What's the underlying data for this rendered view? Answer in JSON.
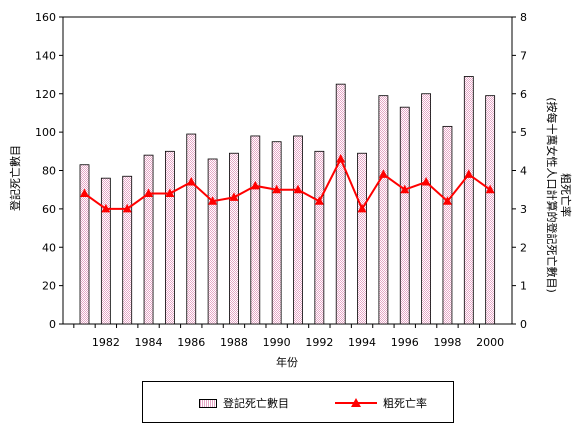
{
  "chart_data": {
    "type": "bar+line",
    "x_tick_labels": [
      "1982",
      "1984",
      "1986",
      "1988",
      "1990",
      "1992",
      "1994",
      "1996",
      "1998",
      "2000"
    ],
    "years": [
      1981,
      1982,
      1983,
      1984,
      1985,
      1986,
      1987,
      1988,
      1989,
      1990,
      1991,
      1992,
      1993,
      1994,
      1995,
      1996,
      1997,
      1998,
      1999,
      2000
    ],
    "series": [
      {
        "name": "登記死亡數目",
        "type": "bar",
        "axis": "left",
        "color": "#e6a6c6",
        "values": [
          83,
          76,
          77,
          88,
          90,
          99,
          86,
          89,
          98,
          95,
          98,
          90,
          125,
          89,
          119,
          113,
          120,
          103,
          129,
          119
        ]
      },
      {
        "name": "粗死亡率",
        "type": "line",
        "axis": "right",
        "color": "#ff0000",
        "values": [
          3.4,
          3.0,
          3.0,
          3.4,
          3.4,
          3.7,
          3.2,
          3.3,
          3.6,
          3.5,
          3.5,
          3.2,
          4.3,
          3.0,
          3.9,
          3.5,
          3.7,
          3.2,
          3.9,
          3.5
        ]
      }
    ],
    "left_axis": {
      "label": "登記死亡數目",
      "ylim": [
        0,
        160
      ],
      "ticks": [
        0,
        20,
        40,
        60,
        80,
        100,
        120,
        140,
        160
      ]
    },
    "right_axis": {
      "label_line1": "粗死亡率",
      "label_line2": "(按每十萬女性人口計算的登記死亡數目)",
      "ylim": [
        0,
        8
      ],
      "ticks": [
        0,
        1,
        2,
        3,
        4,
        5,
        6,
        7,
        8
      ]
    },
    "xlabel": "年份",
    "grid": false,
    "legend": {
      "placement": "bottom",
      "items": [
        "登記死亡數目",
        "粗死亡率"
      ]
    }
  }
}
